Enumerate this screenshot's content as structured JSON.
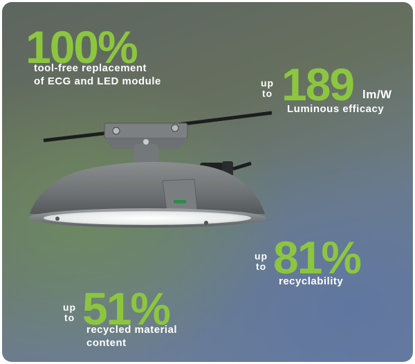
{
  "stats": [
    {
      "prefix": [
        "",
        ""
      ],
      "value": "100%",
      "unit": "",
      "caption": [
        "tool-free replacement",
        "of ECG and LED module"
      ]
    },
    {
      "prefix": [
        "up",
        "to"
      ],
      "value": "189",
      "unit": "lm/W",
      "caption": [
        "Luminous efficacy"
      ]
    },
    {
      "prefix": [
        "up",
        "to"
      ],
      "value": "81%",
      "unit": "",
      "caption": [
        "recyclability"
      ]
    },
    {
      "prefix": [
        "up",
        "to"
      ],
      "value": "51%",
      "unit": "",
      "caption": [
        "recycled material",
        "content"
      ]
    }
  ],
  "colors": {
    "accent": "#8cc63f",
    "text": "#ffffff"
  },
  "image": {
    "subject": "street-light-luminaire"
  }
}
